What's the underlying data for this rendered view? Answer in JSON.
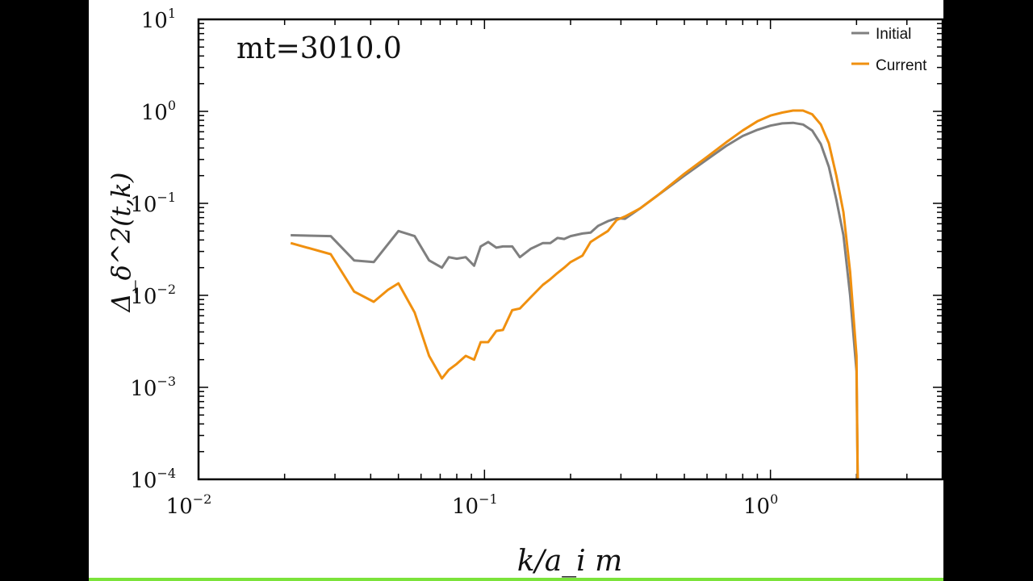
{
  "chart_data": {
    "type": "line",
    "xscale": "log",
    "yscale": "log",
    "xlim": [
      0.01,
      4.0
    ],
    "ylim": [
      0.0001,
      10
    ],
    "x_ticks": [
      {
        "value": 0.01,
        "base": "10",
        "exp": "−2"
      },
      {
        "value": 0.1,
        "base": "10",
        "exp": "−1"
      },
      {
        "value": 1,
        "base": "10",
        "exp": "0"
      }
    ],
    "y_ticks": [
      {
        "value": 10,
        "base": "10",
        "exp": "1"
      },
      {
        "value": 1,
        "base": "10",
        "exp": "0"
      },
      {
        "value": 0.1,
        "base": "10",
        "exp": "−1"
      },
      {
        "value": 0.01,
        "base": "10",
        "exp": "−2"
      },
      {
        "value": 0.001,
        "base": "10",
        "exp": "−3"
      },
      {
        "value": 0.0001,
        "base": "10",
        "exp": "−4"
      }
    ],
    "xlabel": "k/a_i m",
    "ylabel": "Δ_δ^2(t,k)",
    "annotation": "mt=3010.0",
    "legend": "top-right",
    "series": [
      {
        "name": "Initial",
        "color": "#7f7f7f",
        "x": [
          0.021,
          0.029,
          0.035,
          0.041,
          0.05,
          0.057,
          0.064,
          0.071,
          0.075,
          0.08,
          0.086,
          0.092,
          0.097,
          0.103,
          0.11,
          0.116,
          0.125,
          0.133,
          0.145,
          0.16,
          0.17,
          0.18,
          0.19,
          0.2,
          0.22,
          0.235,
          0.25,
          0.27,
          0.29,
          0.31,
          0.35,
          0.4,
          0.5,
          0.6,
          0.7,
          0.8,
          0.9,
          1.0,
          1.1,
          1.2,
          1.3,
          1.4,
          1.5,
          1.6,
          1.7,
          1.8,
          1.9,
          2.0,
          2.02
        ],
        "y": [
          0.045,
          0.044,
          0.024,
          0.023,
          0.05,
          0.044,
          0.024,
          0.02,
          0.026,
          0.025,
          0.026,
          0.021,
          0.034,
          0.038,
          0.033,
          0.034,
          0.034,
          0.026,
          0.032,
          0.037,
          0.037,
          0.042,
          0.041,
          0.044,
          0.047,
          0.048,
          0.057,
          0.064,
          0.069,
          0.068,
          0.088,
          0.12,
          0.2,
          0.3,
          0.42,
          0.54,
          0.63,
          0.7,
          0.74,
          0.75,
          0.72,
          0.62,
          0.44,
          0.25,
          0.11,
          0.045,
          0.01,
          0.0015,
          8e-05
        ]
      },
      {
        "name": "Current",
        "color": "#f0900f",
        "x": [
          0.021,
          0.029,
          0.035,
          0.041,
          0.046,
          0.05,
          0.057,
          0.064,
          0.071,
          0.075,
          0.08,
          0.086,
          0.092,
          0.097,
          0.103,
          0.11,
          0.116,
          0.125,
          0.133,
          0.145,
          0.16,
          0.17,
          0.18,
          0.19,
          0.2,
          0.22,
          0.235,
          0.25,
          0.27,
          0.29,
          0.31,
          0.35,
          0.4,
          0.5,
          0.6,
          0.7,
          0.8,
          0.9,
          1.0,
          1.1,
          1.2,
          1.3,
          1.4,
          1.5,
          1.6,
          1.7,
          1.8,
          1.9,
          2.0,
          2.02
        ],
        "y": [
          0.037,
          0.028,
          0.011,
          0.0085,
          0.0115,
          0.0135,
          0.0065,
          0.0022,
          0.00125,
          0.00155,
          0.0018,
          0.0022,
          0.002,
          0.0031,
          0.0031,
          0.0041,
          0.0042,
          0.0069,
          0.0072,
          0.0095,
          0.013,
          0.015,
          0.0175,
          0.02,
          0.023,
          0.027,
          0.038,
          0.043,
          0.05,
          0.066,
          0.072,
          0.088,
          0.12,
          0.21,
          0.32,
          0.46,
          0.62,
          0.78,
          0.9,
          0.97,
          1.02,
          1.02,
          0.93,
          0.72,
          0.45,
          0.2,
          0.08,
          0.018,
          0.0022,
          8e-05
        ]
      }
    ]
  }
}
